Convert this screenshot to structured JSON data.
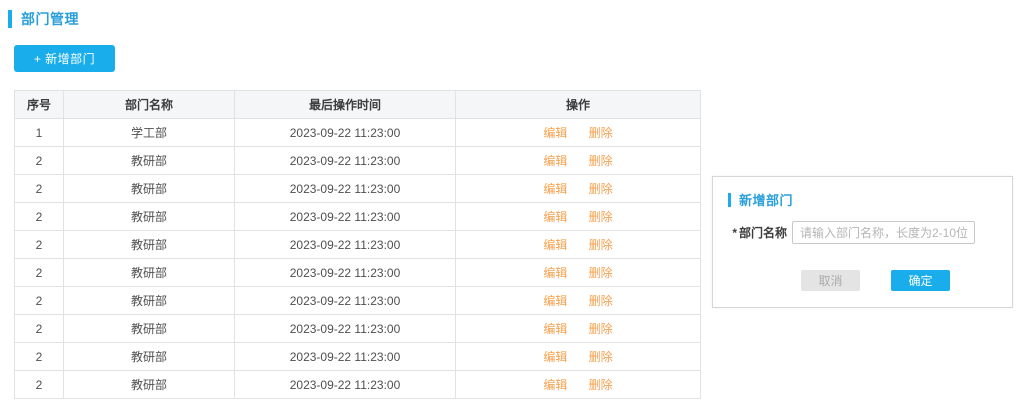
{
  "colors": {
    "accent": "#1aadec",
    "title_blue": "#2a9fdb",
    "link_orange": "#f7a14d",
    "header_bg": "#f5f6f7",
    "border": "#e2e2e2",
    "text": "#4a4a4a",
    "muted": "#b5b5b5"
  },
  "page": {
    "title": "部门管理"
  },
  "toolbar": {
    "add_button_label": "+ 新增部门"
  },
  "table": {
    "columns": [
      "序号",
      "部门名称",
      "最后操作时间",
      "操作"
    ],
    "actions": {
      "edit": "编辑",
      "delete": "删除"
    },
    "rows": [
      {
        "index": "1",
        "name": "学工部",
        "time": "2023-09-22 11:23:00"
      },
      {
        "index": "2",
        "name": "教研部",
        "time": "2023-09-22 11:23:00"
      },
      {
        "index": "2",
        "name": "教研部",
        "time": "2023-09-22 11:23:00"
      },
      {
        "index": "2",
        "name": "教研部",
        "time": "2023-09-22 11:23:00"
      },
      {
        "index": "2",
        "name": "教研部",
        "time": "2023-09-22 11:23:00"
      },
      {
        "index": "2",
        "name": "教研部",
        "time": "2023-09-22 11:23:00"
      },
      {
        "index": "2",
        "name": "教研部",
        "time": "2023-09-22 11:23:00"
      },
      {
        "index": "2",
        "name": "教研部",
        "time": "2023-09-22 11:23:00"
      },
      {
        "index": "2",
        "name": "教研部",
        "time": "2023-09-22 11:23:00"
      },
      {
        "index": "2",
        "name": "教研部",
        "time": "2023-09-22 11:23:00"
      }
    ]
  },
  "dialog": {
    "title": "新增部门",
    "field": {
      "required_mark": "*",
      "label": "部门名称",
      "value": "",
      "placeholder": "请输入部门名称，长度为2-10位"
    },
    "cancel_label": "取消",
    "confirm_label": "确定"
  }
}
